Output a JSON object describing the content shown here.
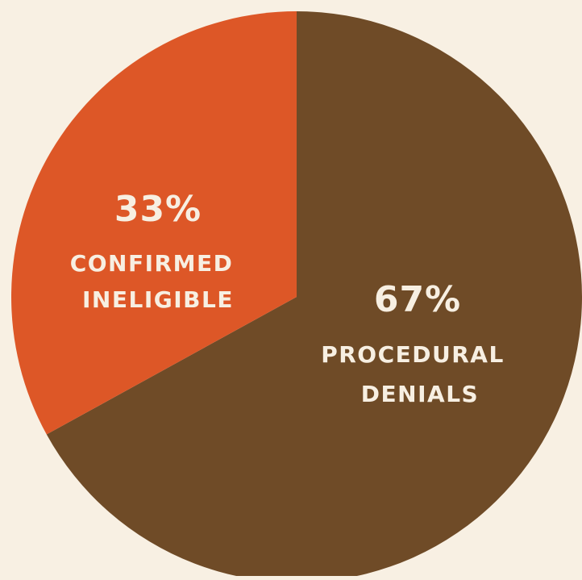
{
  "colors": {
    "background": "#f8f0e3",
    "text": "#f7efe2"
  },
  "chart_data": {
    "type": "pie",
    "start_angle_deg": 0,
    "direction": "clockwise",
    "slices": [
      {
        "value": 67,
        "value_label": "67%",
        "label_lines": [
          "PROCEDURAL",
          "DENIALS"
        ],
        "color": "#6f4b27"
      },
      {
        "value": 33,
        "value_label": "33%",
        "label_lines": [
          "CONFIRMED",
          "INELIGIBLE"
        ],
        "color": "#dd5727"
      }
    ]
  }
}
